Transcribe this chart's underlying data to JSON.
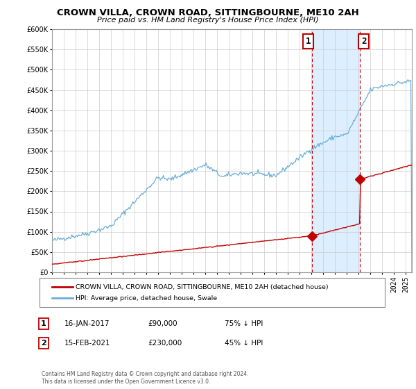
{
  "title": "CROWN VILLA, CROWN ROAD, SITTINGBOURNE, ME10 2AH",
  "subtitle": "Price paid vs. HM Land Registry's House Price Index (HPI)",
  "ylim": [
    0,
    600000
  ],
  "yticks": [
    0,
    50000,
    100000,
    150000,
    200000,
    250000,
    300000,
    350000,
    400000,
    450000,
    500000,
    550000,
    600000
  ],
  "xlim_start": 1995.0,
  "xlim_end": 2025.5,
  "hpi_color": "#6aaed6",
  "sale_color": "#c00000",
  "vline_color": "#c00000",
  "shade_color": "#ddeeff",
  "marker1_date": 2017.04,
  "marker1_price": 90000,
  "marker2_date": 2021.12,
  "marker2_price": 230000,
  "legend_sale": "CROWN VILLA, CROWN ROAD, SITTINGBOURNE, ME10 2AH (detached house)",
  "legend_hpi": "HPI: Average price, detached house, Swale",
  "note1_label": "1",
  "note1_date": "16-JAN-2017",
  "note1_price": "£90,000",
  "note1_pct": "75% ↓ HPI",
  "note2_label": "2",
  "note2_date": "15-FEB-2021",
  "note2_price": "£230,000",
  "note2_pct": "45% ↓ HPI",
  "footer": "Contains HM Land Registry data © Crown copyright and database right 2024.\nThis data is licensed under the Open Government Licence v3.0.",
  "background_color": "#ffffff",
  "grid_color": "#cccccc"
}
